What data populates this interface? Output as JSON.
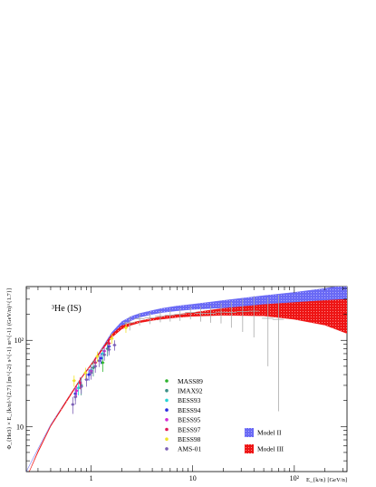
{
  "chart_data": {
    "type": "scatter",
    "title": "³He (IS)",
    "ylabel": "Φ_{He3} × E_{k/n}^{2.7} [m^{-2} s^{-1} sr^{-1} (GeV/n)^{1.7}]",
    "xlabel": "E_{k/n}  [GeV/n]",
    "x_scale": "log",
    "y_scale": "log",
    "xlim": [
      0.23,
      330
    ],
    "ylim": [
      3,
      420
    ],
    "x_tick_labels": [
      {
        "value": 1,
        "text": "1"
      },
      {
        "value": 10,
        "text": "10"
      },
      {
        "value": 100,
        "text": "10²"
      }
    ],
    "y_tick_labels": [
      {
        "value": 10,
        "text": "10"
      },
      {
        "value": 100,
        "text": "10²"
      }
    ],
    "legend": {
      "placement": "bottom-center",
      "experiments": [
        {
          "name": "MASS89",
          "color": "#2db32d"
        },
        {
          "name": "IMAX92",
          "color": "#3b8f86"
        },
        {
          "name": "BESS93",
          "color": "#27d3d3"
        },
        {
          "name": "BESS94",
          "color": "#2a2ae0"
        },
        {
          "name": "BESS95",
          "color": "#d42ad4"
        },
        {
          "name": "BESS97",
          "color": "#e0195a"
        },
        {
          "name": "BESS98",
          "color": "#f0e32a"
        },
        {
          "name": "AMS-01",
          "color": "#7b5fb5"
        }
      ],
      "models": [
        {
          "name": "Model II",
          "color": "#6a6af5"
        },
        {
          "name": "Model III",
          "color": "#ee1515"
        }
      ]
    },
    "model_bands": [
      {
        "name": "Model II",
        "color": "#6a6af5",
        "x": [
          0.23,
          0.3,
          0.4,
          0.6,
          0.8,
          1.0,
          1.3,
          1.6,
          2.0,
          2.5,
          3.0,
          4.0,
          5.0,
          7.0,
          10,
          20,
          50,
          100,
          200,
          330
        ],
        "lower": [
          3,
          5.5,
          10.5,
          22,
          37,
          52,
          80,
          112,
          145,
          170,
          185,
          200,
          210,
          220,
          228,
          238,
          248,
          252,
          256,
          260
        ],
        "upper": [
          3,
          5.5,
          10.5,
          22,
          37,
          53,
          84,
          124,
          165,
          190,
          205,
          222,
          235,
          250,
          262,
          290,
          330,
          360,
          400,
          440
        ]
      },
      {
        "name": "Model III",
        "color": "#ee1515",
        "x": [
          0.23,
          0.3,
          0.4,
          0.6,
          0.8,
          1.0,
          1.3,
          1.6,
          2.0,
          2.5,
          3.0,
          4.0,
          5.0,
          7.0,
          10,
          20,
          50,
          100,
          200,
          330
        ],
        "lower": [
          2.5,
          5.0,
          10.0,
          21,
          36,
          51,
          78,
          108,
          135,
          150,
          160,
          170,
          176,
          184,
          190,
          195,
          192,
          175,
          150,
          120
        ],
        "upper": [
          2.5,
          5.2,
          10.3,
          22,
          37,
          53,
          82,
          118,
          148,
          160,
          168,
          180,
          190,
          200,
          210,
          235,
          260,
          275,
          290,
          300
        ]
      }
    ],
    "measurements": [
      {
        "experiment": "MASS89",
        "points": [
          {
            "x": 1.3,
            "y": 55,
            "err": 12
          }
        ]
      },
      {
        "experiment": "IMAX92",
        "points": [
          {
            "x": 0.8,
            "y": 30,
            "err": 7
          },
          {
            "x": 1.05,
            "y": 48,
            "err": 10
          },
          {
            "x": 1.45,
            "y": 80,
            "err": 15
          }
        ]
      },
      {
        "experiment": "BESS93",
        "points": [
          {
            "x": 0.75,
            "y": 28,
            "err": 5
          },
          {
            "x": 1.0,
            "y": 45,
            "err": 7
          },
          {
            "x": 1.3,
            "y": 70,
            "err": 10
          }
        ]
      },
      {
        "experiment": "BESS94",
        "points": [
          {
            "x": 0.7,
            "y": 24,
            "err": 4
          },
          {
            "x": 0.95,
            "y": 40,
            "err": 6
          },
          {
            "x": 1.25,
            "y": 62,
            "err": 9
          },
          {
            "x": 1.5,
            "y": 85,
            "err": 12
          }
        ]
      },
      {
        "experiment": "BESS95",
        "points": [
          {
            "x": 0.72,
            "y": 26,
            "err": 4
          },
          {
            "x": 1.0,
            "y": 44,
            "err": 6
          },
          {
            "x": 1.35,
            "y": 75,
            "err": 10
          }
        ]
      },
      {
        "experiment": "BESS97",
        "points": [
          {
            "x": 0.78,
            "y": 32,
            "err": 5
          },
          {
            "x": 1.1,
            "y": 55,
            "err": 8
          },
          {
            "x": 1.5,
            "y": 92,
            "err": 13
          }
        ]
      },
      {
        "experiment": "BESS98",
        "points": [
          {
            "x": 0.68,
            "y": 34,
            "err": 5
          },
          {
            "x": 0.88,
            "y": 42,
            "err": 6
          },
          {
            "x": 1.15,
            "y": 65,
            "err": 9
          },
          {
            "x": 1.6,
            "y": 105,
            "err": 14
          },
          {
            "x": 2.2,
            "y": 140,
            "err": 18
          }
        ]
      },
      {
        "experiment": "AMS-01",
        "points": [
          {
            "x": 0.66,
            "y": 18,
            "err": 4
          },
          {
            "x": 0.7,
            "y": 22,
            "err": 4
          },
          {
            "x": 0.8,
            "y": 29,
            "err": 5
          },
          {
            "x": 0.9,
            "y": 35,
            "err": 6
          },
          {
            "x": 1.0,
            "y": 42,
            "err": 7
          },
          {
            "x": 1.1,
            "y": 50,
            "err": 8
          },
          {
            "x": 1.2,
            "y": 58,
            "err": 9
          },
          {
            "x": 1.35,
            "y": 68,
            "err": 10
          },
          {
            "x": 1.5,
            "y": 78,
            "err": 11
          },
          {
            "x": 1.7,
            "y": 88,
            "err": 12
          }
        ]
      }
    ],
    "gray_points": [
      {
        "x": 2.4,
        "y": 160,
        "err": 30,
        "xerr": 0.3
      },
      {
        "x": 3.0,
        "y": 178,
        "err": 30,
        "xerr": 0.35
      },
      {
        "x": 3.8,
        "y": 182,
        "err": 28,
        "xerr": 0.45
      },
      {
        "x": 4.8,
        "y": 190,
        "err": 28,
        "xerr": 0.55
      },
      {
        "x": 6.0,
        "y": 195,
        "err": 30,
        "xerr": 0.7
      },
      {
        "x": 7.5,
        "y": 200,
        "err": 32,
        "xerr": 0.9
      },
      {
        "x": 9.5,
        "y": 210,
        "err": 35,
        "xerr": 1.1
      },
      {
        "x": 12,
        "y": 205,
        "err": 40,
        "xerr": 1.5
      },
      {
        "x": 15,
        "y": 205,
        "err": 45,
        "xerr": 1.9
      },
      {
        "x": 19,
        "y": 212,
        "err": 55,
        "xerr": 2.4
      },
      {
        "x": 24,
        "y": 210,
        "err": 70,
        "xerr": 3.0
      },
      {
        "x": 31,
        "y": 215,
        "err": 90,
        "xerr": 4.0
      },
      {
        "x": 40,
        "y": 218,
        "err": 110,
        "xerr": 5.0
      },
      {
        "x": 55,
        "y": 180,
        "err": 130,
        "xerr": 7.0
      },
      {
        "x": 70,
        "y": 175,
        "err": 160,
        "xerr": 9.0
      }
    ]
  }
}
